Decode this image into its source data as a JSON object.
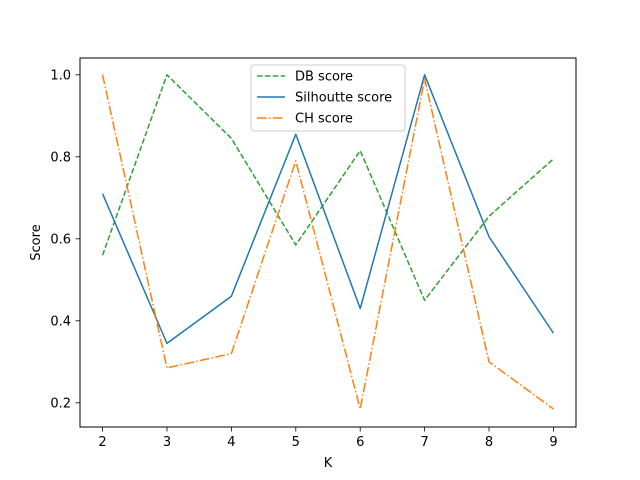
{
  "chart_data": {
    "type": "line",
    "title": "",
    "xlabel": "K",
    "ylabel": "Score",
    "x": [
      2,
      3,
      4,
      5,
      6,
      7,
      8,
      9
    ],
    "xlim": [
      1.65,
      9.35
    ],
    "ylim": [
      0.141,
      1.041
    ],
    "xticks": [
      "2",
      "3",
      "4",
      "5",
      "6",
      "7",
      "8",
      "9"
    ],
    "yticks": [
      "0.2",
      "0.4",
      "0.6",
      "0.8",
      "1.0"
    ],
    "ytick_values": [
      0.2,
      0.4,
      0.6,
      0.8,
      1.0
    ],
    "grid": false,
    "legend_position": "upper-center",
    "series": [
      {
        "name": "DB score",
        "color": "#2ca02c",
        "dash": "dashed",
        "values": [
          0.56,
          1.0,
          0.845,
          0.585,
          0.815,
          0.45,
          0.655,
          0.795
        ]
      },
      {
        "name": "Silhoutte score",
        "color": "#1f77b4",
        "dash": "solid",
        "values": [
          0.71,
          0.345,
          0.46,
          0.855,
          0.43,
          1.0,
          0.605,
          0.37
        ]
      },
      {
        "name": "CH score",
        "color": "#ff7f0e",
        "dash": "dashdot",
        "values": [
          1.0,
          0.285,
          0.32,
          0.79,
          0.185,
          0.99,
          0.3,
          0.185
        ]
      }
    ]
  }
}
